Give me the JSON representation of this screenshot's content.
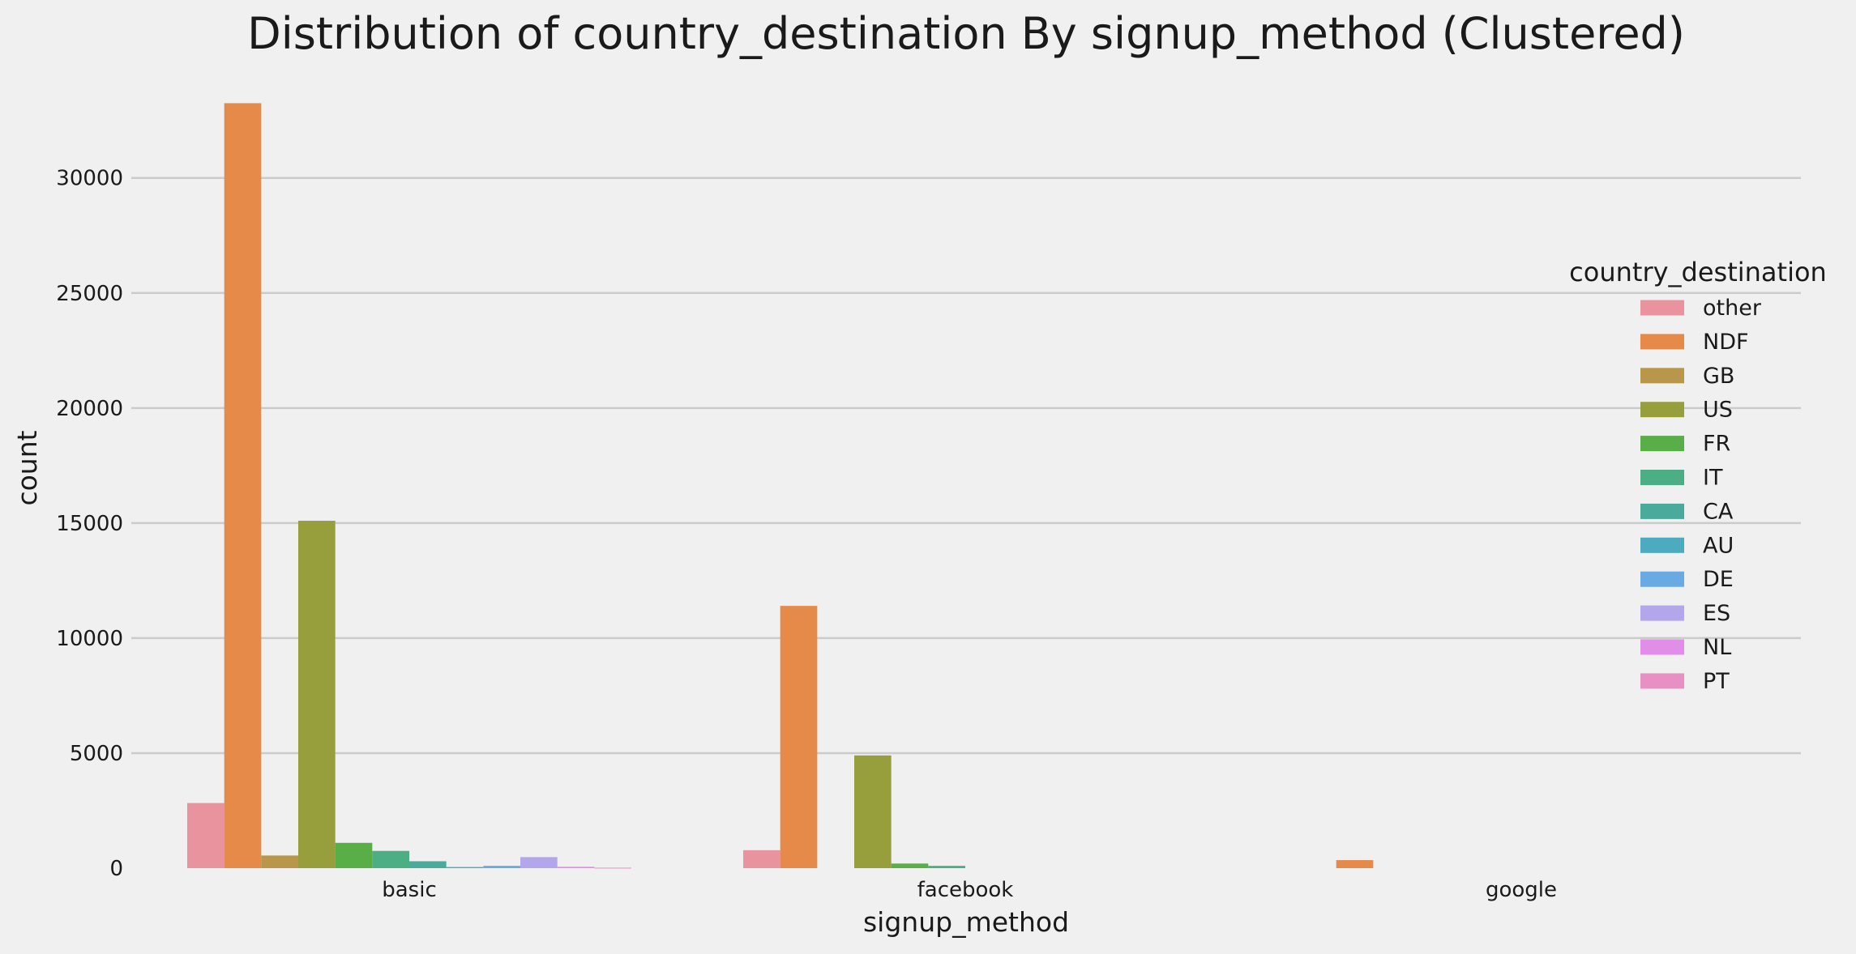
{
  "chart_data": {
    "type": "bar",
    "title": "Distribution of country_destination By signup_method (Clustered)",
    "xlabel": "signup_method",
    "ylabel": "count",
    "categories": [
      "basic",
      "facebook",
      "google"
    ],
    "ylim": [
      0,
      33300
    ],
    "yticks": [
      0,
      5000,
      10000,
      15000,
      20000,
      25000,
      30000
    ],
    "yticks_labels": [
      "0",
      "5000",
      "10000",
      "15000",
      "20000",
      "25000",
      "30000"
    ],
    "grid": true,
    "legend": {
      "title": "country_destination",
      "placement": "right"
    },
    "series": [
      {
        "name": "other",
        "color": "#e8939e",
        "values": [
          2830,
          780,
          0
        ]
      },
      {
        "name": "NDF",
        "color": "#e68a4a",
        "values": [
          33250,
          11400,
          350
        ]
      },
      {
        "name": "GB",
        "color": "#b8974a",
        "values": [
          550,
          0,
          0
        ]
      },
      {
        "name": "US",
        "color": "#979f3d",
        "values": [
          15100,
          4900,
          0
        ]
      },
      {
        "name": "FR",
        "color": "#5aae48",
        "values": [
          1100,
          200,
          0
        ]
      },
      {
        "name": "IT",
        "color": "#4bae84",
        "values": [
          750,
          100,
          0
        ]
      },
      {
        "name": "CA",
        "color": "#4aaa9b",
        "values": [
          300,
          0,
          0
        ]
      },
      {
        "name": "AU",
        "color": "#4dabc0",
        "values": [
          50,
          0,
          0
        ]
      },
      {
        "name": "DE",
        "color": "#6aaae3",
        "values": [
          100,
          0,
          0
        ]
      },
      {
        "name": "ES",
        "color": "#b3a6ea",
        "values": [
          480,
          0,
          0
        ]
      },
      {
        "name": "NL",
        "color": "#e08ee8",
        "values": [
          60,
          0,
          0
        ]
      },
      {
        "name": "PT",
        "color": "#e88fc4",
        "values": [
          20,
          0,
          0
        ]
      }
    ]
  }
}
